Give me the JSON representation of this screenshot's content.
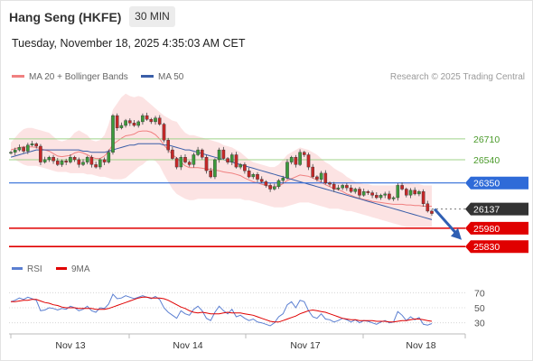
{
  "header": {
    "title": "Hang Seng (HKFE)",
    "interval": "30 MIN"
  },
  "datetime": "Tuesday, November 18, 2025 4:35:03 AM CET",
  "credit": "Research © 2025 Trading Central",
  "colors": {
    "bollinger": "#f08080",
    "ma50": "#3a5ea8",
    "resistance": "#9fd38a",
    "pivot": "#2f6bd8",
    "support": "#e00000",
    "last": "#333333",
    "rsi": "#5b7fd1",
    "rsi_ma": "#e00000"
  },
  "chart_data": [
    {
      "type": "candlestick",
      "legend": [
        {
          "name": "MA 20 + Bollinger Bands",
          "color": "#f08080"
        },
        {
          "name": "MA 50",
          "color": "#3a5ea8"
        }
      ],
      "x_labels": [
        "Nov 13",
        "Nov 14",
        "Nov 17",
        "Nov 18"
      ],
      "ylim": [
        25780,
        26960
      ],
      "levels": [
        {
          "value": 26710,
          "label": "26710",
          "kind": "resistance"
        },
        {
          "value": 26540,
          "label": "26540",
          "kind": "resistance"
        },
        {
          "value": 26350,
          "label": "26350",
          "kind": "pivot"
        },
        {
          "value": 26137,
          "label": "26137",
          "kind": "last"
        },
        {
          "value": 25980,
          "label": "25980",
          "kind": "support"
        },
        {
          "value": 25830,
          "label": "25830",
          "kind": "support"
        }
      ],
      "close": [
        26600,
        26620,
        26640,
        26610,
        26660,
        26670,
        26650,
        26520,
        26540,
        26560,
        26530,
        26500,
        26530,
        26520,
        26560,
        26540,
        26500,
        26520,
        26560,
        26500,
        26480,
        26540,
        26520,
        26600,
        26900,
        26800,
        26820,
        26860,
        26840,
        26820,
        26850,
        26900,
        26870,
        26850,
        26880,
        26830,
        26700,
        26620,
        26550,
        26480,
        26560,
        26520,
        26500,
        26580,
        26620,
        26560,
        26450,
        26400,
        26540,
        26620,
        26550,
        26520,
        26580,
        26480,
        26500,
        26450,
        26400,
        26420,
        26380,
        26360,
        26330,
        26300,
        26320,
        26370,
        26390,
        26520,
        26560,
        26500,
        26600,
        26580,
        26480,
        26400,
        26380,
        26430,
        26350,
        26340,
        26300,
        26310,
        26330,
        26310,
        26280,
        26300,
        26250,
        26280,
        26270,
        26250,
        26230,
        26250,
        26260,
        26220,
        26230,
        26330,
        26300,
        26250,
        26290,
        26260,
        26280,
        26180,
        26120,
        26100
      ],
      "bollinger_upper": [
        26680,
        26720,
        26760,
        26790,
        26800,
        26800,
        26790,
        26780,
        26770,
        26760,
        26730,
        26700,
        26690,
        26700,
        26720,
        26760,
        26780,
        26760,
        26740,
        26700,
        26690,
        26700,
        26740,
        26830,
        26950,
        27000,
        27050,
        27080,
        27060,
        27050,
        27060,
        27050,
        27020,
        26990,
        26960,
        26930,
        26900,
        26880,
        26860,
        26850,
        26800,
        26760,
        26740,
        26740,
        26730,
        26720,
        26710,
        26700,
        26690,
        26680,
        26660,
        26650,
        26640,
        26620,
        26600,
        26570,
        26540,
        26520,
        26510,
        26500,
        26490,
        26480,
        26480,
        26500,
        26540,
        26580,
        26600,
        26620,
        26640,
        26630,
        26620,
        26600,
        26580,
        26550,
        26520,
        26500,
        26470,
        26450,
        26430,
        26400,
        26380,
        26360,
        26350,
        26340,
        26340,
        26330,
        26330,
        26330,
        26330,
        26330,
        26330,
        26340,
        26350,
        26350,
        26350,
        26340,
        26340,
        26330,
        26330,
        26330
      ],
      "bollinger_lower": [
        26560,
        26540,
        26520,
        26500,
        26490,
        26490,
        26490,
        26480,
        26470,
        26460,
        26450,
        26440,
        26440,
        26440,
        26430,
        26430,
        26430,
        26430,
        26420,
        26420,
        26410,
        26400,
        26400,
        26390,
        26380,
        26380,
        26380,
        26390,
        26420,
        26450,
        26480,
        26500,
        26530,
        26540,
        26530,
        26490,
        26420,
        26360,
        26300,
        26260,
        26240,
        26220,
        26210,
        26210,
        26220,
        26220,
        26220,
        26220,
        26220,
        26220,
        26220,
        26220,
        26220,
        26220,
        26220,
        26210,
        26210,
        26200,
        26190,
        26180,
        26170,
        26160,
        26150,
        26150,
        26150,
        26160,
        26170,
        26180,
        26190,
        26190,
        26190,
        26180,
        26170,
        26160,
        26150,
        26140,
        26140,
        26140,
        26130,
        26120,
        26120,
        26110,
        26100,
        26090,
        26080,
        26070,
        26060,
        26050,
        26040,
        26030,
        26020,
        26010,
        26000,
        25990,
        25990,
        25990,
        25990,
        25990,
        25990,
        25990
      ],
      "ma50": [
        26560,
        26570,
        26580,
        26590,
        26600,
        26610,
        26620,
        26620,
        26620,
        26620,
        26620,
        26620,
        26620,
        26620,
        26620,
        26620,
        26620,
        26610,
        26610,
        26600,
        26600,
        26600,
        26600,
        26610,
        26620,
        26630,
        26640,
        26650,
        26660,
        26660,
        26670,
        26670,
        26670,
        26670,
        26670,
        26670,
        26660,
        26660,
        26650,
        26640,
        26630,
        26620,
        26620,
        26610,
        26600,
        26590,
        26580,
        26570,
        26560,
        26550,
        26540,
        26530,
        26520,
        26510,
        26500,
        26490,
        26480,
        26470,
        26460,
        26450,
        26440,
        26430,
        26420,
        26410,
        26400,
        26390,
        26380,
        26370,
        26360,
        26350,
        26340,
        26330,
        26320,
        26310,
        26300,
        26290,
        26280,
        26270,
        26260,
        26250,
        26240,
        26230,
        26220,
        26210,
        26200,
        26190,
        26180,
        26170,
        26160,
        26150,
        26140,
        26130,
        26120,
        26110,
        26100,
        26090,
        26080,
        26070,
        26060,
        26050
      ],
      "projection": {
        "from": 26137,
        "to": 25900
      }
    },
    {
      "type": "line",
      "legend": [
        {
          "name": "RSI",
          "color": "#5b7fd1"
        },
        {
          "name": "9MA",
          "color": "#e00000"
        }
      ],
      "ylim": [
        20,
        80
      ],
      "yticks": [
        70,
        50,
        30
      ],
      "yticks_labels": [
        "70",
        "50",
        "30"
      ],
      "series": [
        {
          "name": "RSI",
          "values": [
            58,
            60,
            63,
            61,
            64,
            62,
            60,
            46,
            47,
            50,
            49,
            47,
            49,
            48,
            52,
            50,
            46,
            48,
            52,
            46,
            44,
            50,
            49,
            55,
            68,
            62,
            63,
            66,
            64,
            62,
            64,
            66,
            64,
            62,
            65,
            61,
            50,
            44,
            40,
            36,
            46,
            42,
            40,
            48,
            52,
            46,
            36,
            33,
            44,
            52,
            46,
            42,
            48,
            38,
            40,
            36,
            33,
            35,
            31,
            30,
            28,
            26,
            30,
            38,
            42,
            54,
            58,
            50,
            60,
            58,
            46,
            38,
            36,
            42,
            35,
            34,
            31,
            33,
            36,
            34,
            31,
            34,
            30,
            33,
            32,
            30,
            28,
            31,
            33,
            30,
            31,
            45,
            40,
            33,
            38,
            34,
            37,
            28,
            27,
            29
          ]
        },
        {
          "name": "9MA",
          "values": [
            58,
            58,
            59,
            60,
            60,
            61,
            61,
            59,
            57,
            56,
            54,
            53,
            51,
            50,
            50,
            50,
            49,
            49,
            49,
            49,
            48,
            48,
            48,
            49,
            51,
            53,
            55,
            57,
            59,
            61,
            63,
            64,
            64,
            63,
            63,
            63,
            62,
            60,
            57,
            54,
            51,
            49,
            46,
            44,
            43,
            44,
            43,
            42,
            42,
            42,
            43,
            44,
            43,
            43,
            43,
            42,
            41,
            40,
            38,
            36,
            34,
            32,
            31,
            31,
            33,
            35,
            37,
            39,
            42,
            44,
            46,
            47,
            46,
            45,
            44,
            42,
            40,
            38,
            36,
            35,
            34,
            34,
            33,
            33,
            33,
            33,
            32,
            32,
            32,
            31,
            31,
            32,
            33,
            33,
            34,
            35,
            35,
            34,
            33,
            32
          ]
        }
      ]
    }
  ]
}
